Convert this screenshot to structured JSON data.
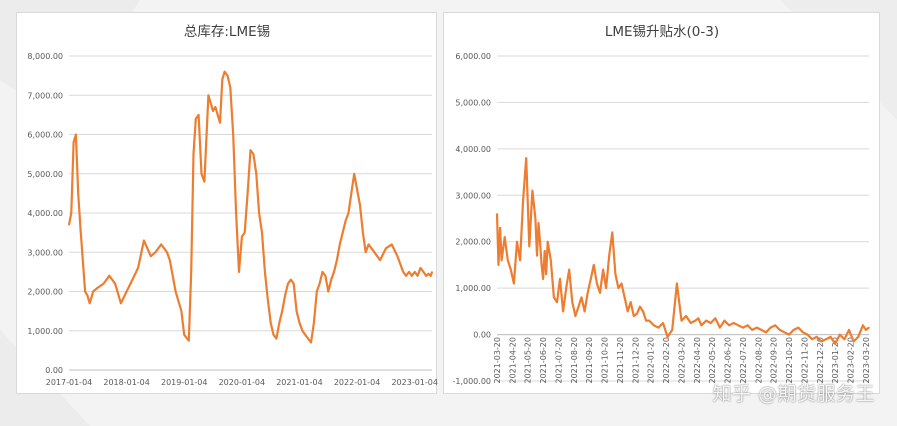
{
  "colors": {
    "series": "#ED7D31",
    "grid": "#d9d9d9",
    "text": "#595959"
  },
  "watermark": "知乎 @期货服务王",
  "chart_data": [
    {
      "type": "line",
      "title": "总库存:LME锡",
      "xlabel": "",
      "ylabel": "",
      "ylim": [
        0,
        8000
      ],
      "y_ticks": [
        0,
        1000,
        2000,
        3000,
        4000,
        5000,
        6000,
        7000,
        8000
      ],
      "y_tick_labels": [
        "0.00",
        "1,000.00",
        "2,000.00",
        "3,000.00",
        "4,000.00",
        "5,000.00",
        "6,000.00",
        "7,000.00",
        "8,000.00"
      ],
      "x_tick_labels": [
        "2017-01-04",
        "2018-01-04",
        "2019-01-04",
        "2020-01-04",
        "2021-01-04",
        "2022-01-04",
        "2023-01-04"
      ],
      "x_range": [
        2017.0,
        2023.3
      ],
      "series": [
        {
          "name": "总库存:LME锡",
          "x": [
            2017.0,
            2017.04,
            2017.08,
            2017.12,
            2017.16,
            2017.2,
            2017.24,
            2017.28,
            2017.32,
            2017.36,
            2017.42,
            2017.5,
            2017.6,
            2017.7,
            2017.8,
            2017.9,
            2018.0,
            2018.1,
            2018.2,
            2018.3,
            2018.36,
            2018.42,
            2018.5,
            2018.6,
            2018.7,
            2018.75,
            2018.85,
            2018.95,
            2019.0,
            2019.05,
            2019.08,
            2019.12,
            2019.16,
            2019.2,
            2019.25,
            2019.3,
            2019.35,
            2019.42,
            2019.46,
            2019.5,
            2019.54,
            2019.58,
            2019.62,
            2019.66,
            2019.7,
            2019.75,
            2019.8,
            2019.85,
            2019.9,
            2019.95,
            2020.0,
            2020.05,
            2020.1,
            2020.15,
            2020.2,
            2020.25,
            2020.3,
            2020.35,
            2020.4,
            2020.45,
            2020.5,
            2020.55,
            2020.6,
            2020.65,
            2020.7,
            2020.75,
            2020.8,
            2020.85,
            2020.9,
            2020.95,
            2021.0,
            2021.05,
            2021.1,
            2021.15,
            2021.2,
            2021.25,
            2021.3,
            2021.35,
            2021.4,
            2021.45,
            2021.5,
            2021.55,
            2021.6,
            2021.65,
            2021.7,
            2021.75,
            2021.8,
            2021.85,
            2021.9,
            2021.95,
            2022.0,
            2022.05,
            2022.1,
            2022.15,
            2022.2,
            2022.3,
            2022.4,
            2022.5,
            2022.6,
            2022.7,
            2022.8,
            2022.85,
            2022.9,
            2022.95,
            2023.0,
            2023.05,
            2023.1,
            2023.15,
            2023.2,
            2023.24,
            2023.28,
            2023.3
          ],
          "values": [
            3700,
            4000,
            5800,
            6000,
            4500,
            3600,
            2800,
            2000,
            1900,
            1700,
            2000,
            2100,
            2200,
            2400,
            2200,
            1700,
            2000,
            2300,
            2600,
            3300,
            3100,
            2900,
            3000,
            3200,
            3000,
            2800,
            2000,
            1500,
            900,
            800,
            750,
            2500,
            5500,
            6400,
            6500,
            5000,
            4800,
            7000,
            6800,
            6600,
            6700,
            6500,
            6300,
            7400,
            7600,
            7500,
            7200,
            6000,
            4000,
            2500,
            3400,
            3500,
            4500,
            5600,
            5500,
            5000,
            4000,
            3500,
            2500,
            1800,
            1200,
            900,
            800,
            1200,
            1500,
            1900,
            2200,
            2300,
            2200,
            1500,
            1200,
            1000,
            900,
            800,
            700,
            1200,
            2000,
            2200,
            2500,
            2400,
            2000,
            2300,
            2500,
            2800,
            3200,
            3500,
            3800,
            4000,
            4500,
            5000,
            4600,
            4200,
            3500,
            3000,
            3200,
            3000,
            2800,
            3100,
            3200,
            2900,
            2500,
            2400,
            2500,
            2400,
            2500,
            2400,
            2600,
            2500,
            2400,
            2450,
            2400,
            2500
          ]
        }
      ]
    },
    {
      "type": "line",
      "title": "LME锡升贴水(0-3)",
      "xlabel": "",
      "ylabel": "",
      "ylim": [
        -1000,
        6000
      ],
      "y_ticks": [
        -1000,
        0,
        1000,
        2000,
        3000,
        4000,
        5000,
        6000
      ],
      "y_tick_labels": [
        "-1,000.00",
        "0.00",
        "1,000.00",
        "2,000.00",
        "3,000.00",
        "4,000.00",
        "5,000.00",
        "6,000.00"
      ],
      "x_tick_labels": [
        "2021-03-20",
        "2021-04-20",
        "2021-05-20",
        "2021-06-20",
        "2021-07-20",
        "2021-08-20",
        "2021-09-20",
        "2021-10-20",
        "2021-11-20",
        "2021-12-20",
        "2022-01-20",
        "2022-02-20",
        "2022-03-20",
        "2022-04-20",
        "2022-05-20",
        "2022-06-20",
        "2022-07-20",
        "2022-08-20",
        "2022-09-20",
        "2022-10-20",
        "2022-11-20",
        "2022-12-20",
        "2023-01-20",
        "2023-02-20",
        "2023-03-20"
      ],
      "x_range": [
        0,
        24.2
      ],
      "series": [
        {
          "name": "LME锡升贴水(0-3)",
          "x": [
            0,
            0.1,
            0.2,
            0.3,
            0.5,
            0.7,
            0.9,
            1.1,
            1.3,
            1.5,
            1.7,
            1.9,
            2.1,
            2.3,
            2.5,
            2.6,
            2.7,
            2.8,
            2.9,
            3.0,
            3.1,
            3.2,
            3.3,
            3.5,
            3.7,
            3.9,
            4.1,
            4.3,
            4.5,
            4.7,
            4.9,
            5.1,
            5.3,
            5.5,
            5.7,
            5.9,
            6.1,
            6.3,
            6.5,
            6.7,
            6.9,
            7.1,
            7.3,
            7.5,
            7.7,
            7.9,
            8.1,
            8.3,
            8.5,
            8.7,
            8.9,
            9.1,
            9.3,
            9.5,
            9.7,
            9.9,
            10.2,
            10.5,
            10.8,
            11.1,
            11.4,
            11.7,
            12.0,
            12.3,
            12.6,
            12.9,
            13.1,
            13.3,
            13.6,
            13.9,
            14.2,
            14.5,
            14.8,
            15.1,
            15.4,
            15.7,
            16.0,
            16.3,
            16.6,
            16.9,
            17.2,
            17.5,
            17.8,
            18.1,
            18.4,
            18.7,
            19.0,
            19.3,
            19.6,
            19.9,
            20.2,
            20.5,
            20.8,
            21.1,
            21.4,
            21.7,
            22.0,
            22.3,
            22.6,
            22.9,
            23.2,
            23.5,
            23.8,
            24.0,
            24.2
          ],
          "values": [
            2600,
            1500,
            2300,
            1600,
            2100,
            1600,
            1400,
            1100,
            2000,
            1600,
            2900,
            3800,
            1900,
            3100,
            2500,
            1700,
            2400,
            2000,
            1500,
            1200,
            1800,
            1300,
            2000,
            1600,
            800,
            700,
            1200,
            500,
            1000,
            1400,
            700,
            400,
            600,
            800,
            500,
            900,
            1200,
            1500,
            1100,
            900,
            1400,
            1000,
            1700,
            2200,
            1300,
            1000,
            1100,
            800,
            500,
            700,
            400,
            450,
            600,
            500,
            300,
            300,
            200,
            150,
            250,
            -50,
            100,
            1100,
            300,
            400,
            250,
            300,
            350,
            200,
            300,
            250,
            350,
            150,
            300,
            200,
            250,
            200,
            150,
            200,
            100,
            150,
            100,
            50,
            150,
            200,
            100,
            50,
            0,
            100,
            150,
            50,
            0,
            -100,
            -50,
            -150,
            -100,
            -50,
            -200,
            0,
            -100,
            100,
            -150,
            -50,
            200,
            100,
            150
          ]
        }
      ]
    }
  ]
}
